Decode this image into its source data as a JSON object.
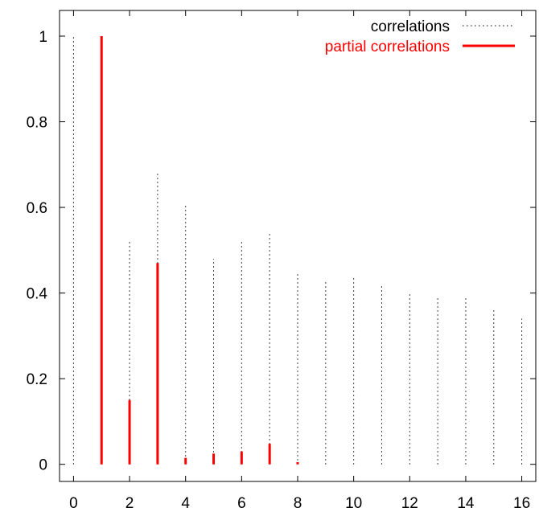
{
  "chart_data": {
    "type": "bar",
    "title": "",
    "xlabel": "",
    "ylabel": "",
    "xlim": [
      -0.5,
      16.5
    ],
    "ylim": [
      -0.04,
      1.06
    ],
    "x_ticks": [
      "0",
      "2",
      "4",
      "6",
      "8",
      "10",
      "12",
      "14",
      "16"
    ],
    "y_ticks": [
      "0",
      "0.2",
      "0.4",
      "0.6",
      "0.8",
      "1"
    ],
    "legend_position": "top-right",
    "grid": false,
    "series": [
      {
        "name": "correlations",
        "style": "dotted",
        "color": "#000000",
        "x": [
          0,
          1,
          2,
          3,
          4,
          5,
          6,
          7,
          8,
          9,
          10,
          11,
          12,
          13,
          14,
          15,
          16
        ],
        "values": [
          1.0,
          1.0,
          0.52,
          0.68,
          0.61,
          0.48,
          0.52,
          0.54,
          0.45,
          0.43,
          0.44,
          0.42,
          0.4,
          0.39,
          0.39,
          0.36,
          0.34
        ]
      },
      {
        "name": "partial correlations",
        "style": "solid",
        "color": "#ff0000",
        "x": [
          1,
          2,
          3,
          4,
          5,
          6,
          7,
          8
        ],
        "values": [
          1.0,
          0.15,
          0.47,
          0.015,
          0.025,
          0.03,
          0.048,
          0.005
        ]
      }
    ]
  }
}
